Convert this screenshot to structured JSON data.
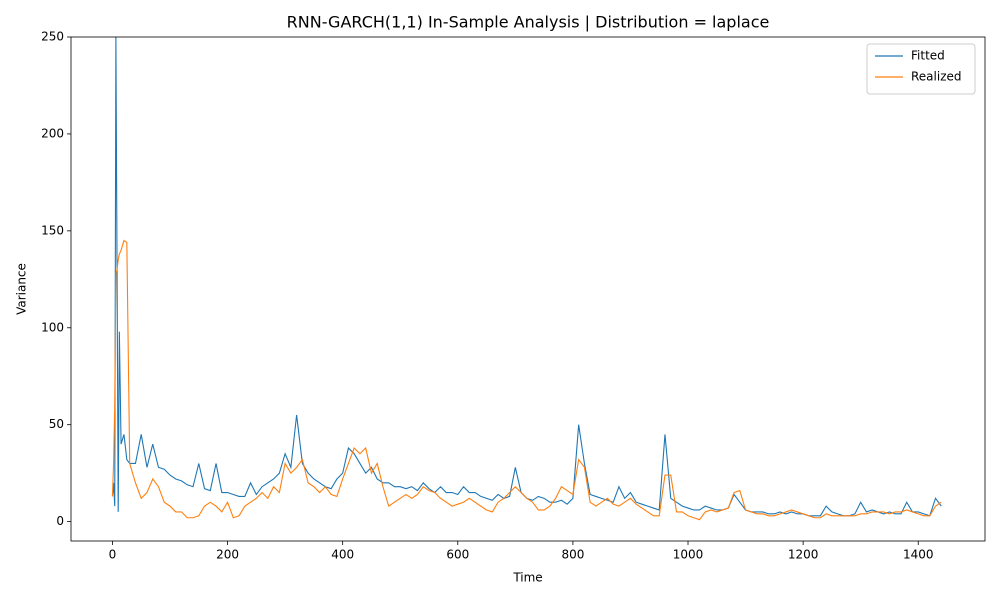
{
  "chart_data": {
    "type": "line",
    "title": "RNN-GARCH(1,1) In-Sample Analysis | Distribution = laplace",
    "x_label": "Time",
    "y_label": "Variance",
    "x": [
      0,
      2,
      4,
      6,
      8,
      10,
      12,
      15,
      20,
      25,
      30,
      40,
      50,
      60,
      70,
      80,
      90,
      100,
      110,
      120,
      130,
      140,
      150,
      160,
      170,
      180,
      190,
      200,
      210,
      220,
      230,
      240,
      250,
      260,
      270,
      280,
      290,
      300,
      310,
      320,
      330,
      340,
      350,
      360,
      370,
      380,
      390,
      400,
      410,
      420,
      430,
      440,
      450,
      460,
      470,
      480,
      490,
      500,
      510,
      520,
      530,
      540,
      550,
      560,
      570,
      580,
      590,
      600,
      610,
      620,
      630,
      640,
      650,
      660,
      670,
      680,
      690,
      700,
      710,
      720,
      730,
      740,
      750,
      760,
      770,
      780,
      790,
      800,
      810,
      820,
      830,
      840,
      850,
      860,
      870,
      880,
      890,
      900,
      910,
      920,
      930,
      940,
      950,
      960,
      970,
      980,
      990,
      1000,
      1010,
      1020,
      1030,
      1040,
      1050,
      1060,
      1070,
      1080,
      1090,
      1100,
      1110,
      1120,
      1130,
      1140,
      1150,
      1160,
      1170,
      1180,
      1190,
      1200,
      1210,
      1220,
      1230,
      1240,
      1250,
      1260,
      1270,
      1280,
      1290,
      1300,
      1310,
      1320,
      1330,
      1340,
      1350,
      1360,
      1370,
      1380,
      1390,
      1400,
      1410,
      1420,
      1430,
      1440
    ],
    "series": [
      {
        "name": "Fitted",
        "color": "#1f77b4",
        "values": [
          13,
          20,
          8,
          250,
          130,
          5,
          98,
          40,
          45,
          32,
          30,
          30,
          45,
          28,
          40,
          28,
          27,
          24,
          22,
          21,
          19,
          18,
          30,
          17,
          16,
          30,
          15,
          15,
          14,
          13,
          13,
          20,
          14,
          18,
          20,
          22,
          25,
          35,
          28,
          55,
          30,
          25,
          22,
          20,
          18,
          17,
          22,
          25,
          38,
          35,
          30,
          25,
          28,
          22,
          20,
          20,
          18,
          18,
          17,
          18,
          16,
          20,
          17,
          15,
          18,
          15,
          15,
          14,
          18,
          15,
          15,
          13,
          12,
          11,
          14,
          12,
          13,
          28,
          15,
          12,
          11,
          13,
          12,
          10,
          10,
          11,
          9,
          12,
          50,
          30,
          14,
          13,
          12,
          11,
          10,
          18,
          12,
          15,
          10,
          9,
          8,
          7,
          6,
          45,
          12,
          10,
          8,
          7,
          6,
          6,
          8,
          7,
          6,
          6,
          7,
          14,
          10,
          6,
          5,
          5,
          5,
          4,
          4,
          5,
          4,
          5,
          4,
          4,
          3,
          3,
          3,
          8,
          5,
          4,
          3,
          3,
          4,
          10,
          5,
          6,
          5,
          4,
          5,
          4,
          4,
          10,
          5,
          5,
          4,
          3,
          12,
          8
        ]
      },
      {
        "name": "Realized",
        "color": "#ff7f0e",
        "values": [
          13,
          30,
          60,
          128,
          130,
          135,
          138,
          140,
          145,
          144,
          30,
          20,
          12,
          15,
          22,
          18,
          10,
          8,
          5,
          5,
          2,
          2,
          3,
          8,
          10,
          8,
          5,
          10,
          2,
          3,
          8,
          10,
          12,
          15,
          12,
          18,
          15,
          30,
          25,
          28,
          32,
          20,
          18,
          15,
          18,
          14,
          13,
          22,
          30,
          38,
          35,
          38,
          25,
          30,
          18,
          8,
          10,
          12,
          14,
          12,
          14,
          18,
          16,
          15,
          12,
          10,
          8,
          9,
          10,
          12,
          10,
          8,
          6,
          5,
          10,
          12,
          15,
          18,
          15,
          12,
          10,
          6,
          6,
          8,
          12,
          18,
          16,
          14,
          32,
          28,
          10,
          8,
          10,
          12,
          9,
          8,
          10,
          12,
          9,
          7,
          5,
          3,
          3,
          24,
          24,
          5,
          5,
          3,
          2,
          1,
          5,
          6,
          5,
          6,
          7,
          15,
          16,
          6,
          5,
          4,
          4,
          3,
          3,
          4,
          5,
          6,
          5,
          4,
          3,
          2,
          2,
          4,
          3,
          3,
          3,
          3,
          3,
          4,
          4,
          5,
          5,
          5,
          4,
          5,
          5,
          6,
          5,
          4,
          3,
          3,
          8,
          10
        ]
      }
    ],
    "xlim": [
      -72,
      1516
    ],
    "ylim": [
      -10,
      250
    ],
    "xticks": [
      0,
      200,
      400,
      600,
      800,
      1000,
      1200,
      1400
    ],
    "yticks": [
      0,
      50,
      100,
      150,
      200,
      250
    ],
    "legend": "upper right"
  }
}
